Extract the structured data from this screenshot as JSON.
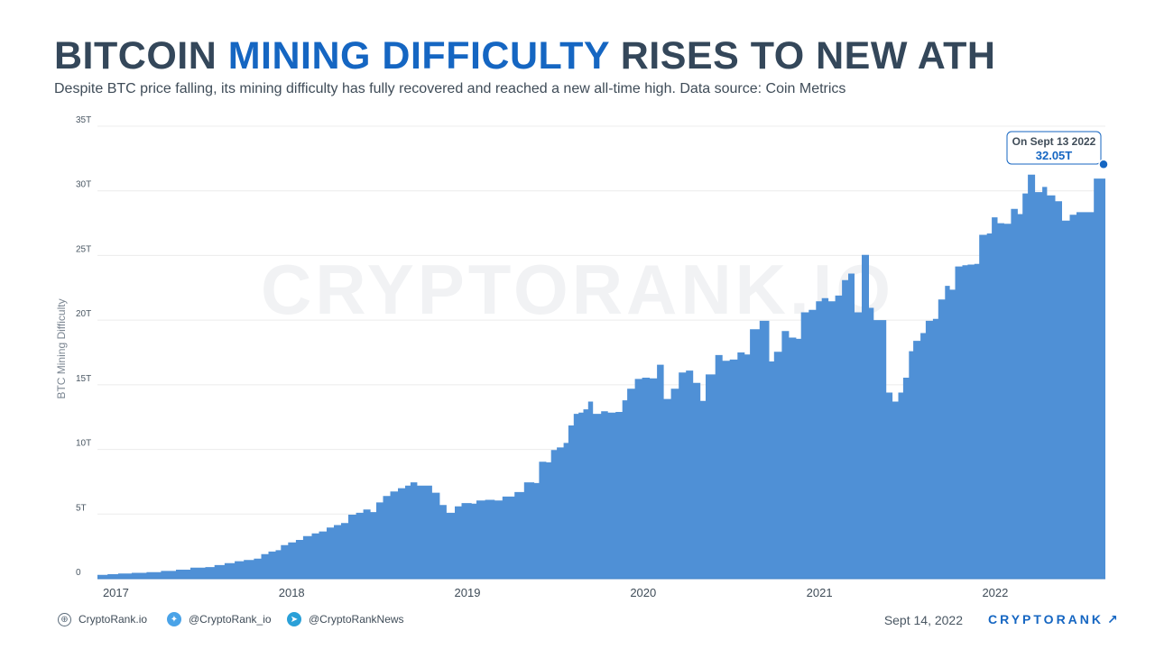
{
  "header": {
    "title_part1": "BITCOIN ",
    "title_accent": "MINING DIFFICULTY",
    "title_part2": " RISES TO NEW ATH",
    "subtitle": "Despite BTC price falling, its mining difficulty has fully recovered and reached a new all-time high. Data source: Coin Metrics"
  },
  "watermark": "CRYPTORANK.IO",
  "colors": {
    "area": "#4f90d6",
    "accent": "#1566c2",
    "grid": "#ececec",
    "text": "#34475a"
  },
  "chart_data": {
    "type": "area",
    "ylabel": "BTC Mining Difficulty",
    "ylim": [
      0,
      35
    ],
    "yticks": [
      0,
      5,
      10,
      15,
      20,
      25,
      30,
      35
    ],
    "ytick_labels": [
      "0",
      "5T",
      "10T",
      "15T",
      "20T",
      "25T",
      "30T",
      "35T"
    ],
    "x_start": "2016-12-20",
    "x_end": "2022-09-13",
    "xticks": [
      "2017-01-01",
      "2018-01-01",
      "2019-01-01",
      "2020-01-01",
      "2021-01-01",
      "2022-01-01"
    ],
    "xtick_labels": [
      "2017",
      "2018",
      "2019",
      "2020",
      "2021",
      "2022"
    ],
    "grid": true,
    "series": [
      {
        "values_unit": "T",
        "points": [
          [
            "2016-12-20",
            0.3
          ],
          [
            "2017-01-10",
            0.35
          ],
          [
            "2017-02-01",
            0.4
          ],
          [
            "2017-03-01",
            0.45
          ],
          [
            "2017-04-01",
            0.5
          ],
          [
            "2017-05-01",
            0.6
          ],
          [
            "2017-06-01",
            0.7
          ],
          [
            "2017-07-01",
            0.85
          ],
          [
            "2017-08-01",
            0.9
          ],
          [
            "2017-08-20",
            1.05
          ],
          [
            "2017-09-10",
            1.2
          ],
          [
            "2017-10-01",
            1.35
          ],
          [
            "2017-10-20",
            1.45
          ],
          [
            "2017-11-10",
            1.55
          ],
          [
            "2017-11-25",
            1.9
          ],
          [
            "2017-12-10",
            2.1
          ],
          [
            "2017-12-25",
            2.2
          ],
          [
            "2018-01-05",
            2.6
          ],
          [
            "2018-01-20",
            2.8
          ],
          [
            "2018-02-05",
            3.0
          ],
          [
            "2018-02-20",
            3.3
          ],
          [
            "2018-03-10",
            3.5
          ],
          [
            "2018-03-25",
            3.65
          ],
          [
            "2018-04-10",
            3.95
          ],
          [
            "2018-04-25",
            4.15
          ],
          [
            "2018-05-10",
            4.3
          ],
          [
            "2018-05-25",
            4.95
          ],
          [
            "2018-06-10",
            5.1
          ],
          [
            "2018-06-25",
            5.35
          ],
          [
            "2018-07-10",
            5.15
          ],
          [
            "2018-07-22",
            5.9
          ],
          [
            "2018-08-05",
            6.4
          ],
          [
            "2018-08-20",
            6.75
          ],
          [
            "2018-09-05",
            7.0
          ],
          [
            "2018-09-20",
            7.2
          ],
          [
            "2018-10-01",
            7.45
          ],
          [
            "2018-10-15",
            7.2
          ],
          [
            "2018-11-05",
            7.2
          ],
          [
            "2018-11-15",
            6.65
          ],
          [
            "2018-12-01",
            5.7
          ],
          [
            "2018-12-15",
            5.1
          ],
          [
            "2019-01-01",
            5.6
          ],
          [
            "2019-01-15",
            5.85
          ],
          [
            "2019-02-05",
            5.8
          ],
          [
            "2019-02-15",
            6.05
          ],
          [
            "2019-03-05",
            6.1
          ],
          [
            "2019-03-25",
            6.05
          ],
          [
            "2019-04-10",
            6.35
          ],
          [
            "2019-05-05",
            6.7
          ],
          [
            "2019-05-25",
            7.45
          ],
          [
            "2019-06-15",
            7.4
          ],
          [
            "2019-06-25",
            9.05
          ],
          [
            "2019-07-10",
            9.0
          ],
          [
            "2019-07-20",
            9.95
          ],
          [
            "2019-08-01",
            10.15
          ],
          [
            "2019-08-15",
            10.5
          ],
          [
            "2019-08-25",
            11.85
          ],
          [
            "2019-09-05",
            12.75
          ],
          [
            "2019-09-15",
            12.85
          ],
          [
            "2019-09-25",
            13.1
          ],
          [
            "2019-10-05",
            13.7
          ],
          [
            "2019-10-15",
            12.75
          ],
          [
            "2019-11-01",
            12.95
          ],
          [
            "2019-11-15",
            12.85
          ],
          [
            "2019-12-01",
            12.9
          ],
          [
            "2019-12-15",
            13.8
          ],
          [
            "2019-12-25",
            14.7
          ],
          [
            "2020-01-10",
            15.45
          ],
          [
            "2020-01-25",
            15.55
          ],
          [
            "2020-02-10",
            15.5
          ],
          [
            "2020-02-25",
            16.55
          ],
          [
            "2020-03-10",
            13.9
          ],
          [
            "2020-03-25",
            14.7
          ],
          [
            "2020-04-10",
            15.95
          ],
          [
            "2020-04-25",
            16.1
          ],
          [
            "2020-05-10",
            15.15
          ],
          [
            "2020-05-25",
            13.75
          ],
          [
            "2020-06-05",
            15.8
          ],
          [
            "2020-06-25",
            17.3
          ],
          [
            "2020-07-10",
            16.85
          ],
          [
            "2020-07-25",
            16.95
          ],
          [
            "2020-08-10",
            17.5
          ],
          [
            "2020-08-25",
            17.35
          ],
          [
            "2020-09-05",
            19.3
          ],
          [
            "2020-09-25",
            19.95
          ],
          [
            "2020-10-10",
            19.95
          ],
          [
            "2020-10-15",
            16.8
          ],
          [
            "2020-10-25",
            17.55
          ],
          [
            "2020-11-10",
            19.15
          ],
          [
            "2020-11-25",
            18.65
          ],
          [
            "2020-12-10",
            18.55
          ],
          [
            "2020-12-20",
            20.6
          ],
          [
            "2021-01-05",
            20.8
          ],
          [
            "2021-01-20",
            21.45
          ],
          [
            "2021-02-01",
            21.7
          ],
          [
            "2021-02-15",
            21.45
          ],
          [
            "2021-03-01",
            21.9
          ],
          [
            "2021-03-15",
            23.1
          ],
          [
            "2021-03-28",
            23.6
          ],
          [
            "2021-04-10",
            20.6
          ],
          [
            "2021-04-25",
            25.05
          ],
          [
            "2021-05-10",
            20.95
          ],
          [
            "2021-05-20",
            20.0
          ],
          [
            "2021-06-05",
            20.0
          ],
          [
            "2021-06-15",
            14.4
          ],
          [
            "2021-06-28",
            13.7
          ],
          [
            "2021-07-10",
            14.4
          ],
          [
            "2021-07-20",
            15.55
          ],
          [
            "2021-08-01",
            17.6
          ],
          [
            "2021-08-10",
            18.4
          ],
          [
            "2021-08-25",
            19.0
          ],
          [
            "2021-09-05",
            19.95
          ],
          [
            "2021-09-20",
            20.1
          ],
          [
            "2021-10-01",
            21.6
          ],
          [
            "2021-10-15",
            22.65
          ],
          [
            "2021-10-25",
            22.35
          ],
          [
            "2021-11-05",
            24.15
          ],
          [
            "2021-11-20",
            24.25
          ],
          [
            "2021-12-01",
            24.3
          ],
          [
            "2021-12-15",
            24.35
          ],
          [
            "2021-12-25",
            26.6
          ],
          [
            "2022-01-10",
            26.7
          ],
          [
            "2022-01-20",
            27.95
          ],
          [
            "2022-02-01",
            27.5
          ],
          [
            "2022-02-15",
            27.45
          ],
          [
            "2022-03-01",
            28.6
          ],
          [
            "2022-03-15",
            28.2
          ],
          [
            "2022-03-25",
            29.8
          ],
          [
            "2022-04-05",
            31.25
          ],
          [
            "2022-04-20",
            29.9
          ],
          [
            "2022-05-05",
            30.3
          ],
          [
            "2022-05-15",
            29.65
          ],
          [
            "2022-06-01",
            29.2
          ],
          [
            "2022-06-15",
            27.7
          ],
          [
            "2022-07-01",
            28.15
          ],
          [
            "2022-07-15",
            28.35
          ],
          [
            "2022-08-20",
            30.95
          ],
          [
            "2022-09-13",
            32.05
          ]
        ]
      }
    ],
    "annotation": {
      "date": "2022-09-13",
      "value": 32.05,
      "label_line1": "On Sept 13 2022",
      "label_line2": "32.05T"
    }
  },
  "footer": {
    "website": "CryptoRank.io",
    "twitter": "@CryptoRank_io",
    "telegram": "@CryptoRankNews",
    "date": "Sept 14, 2022",
    "brand": "CRYPTORANK",
    "brand_arrow": "↗"
  }
}
